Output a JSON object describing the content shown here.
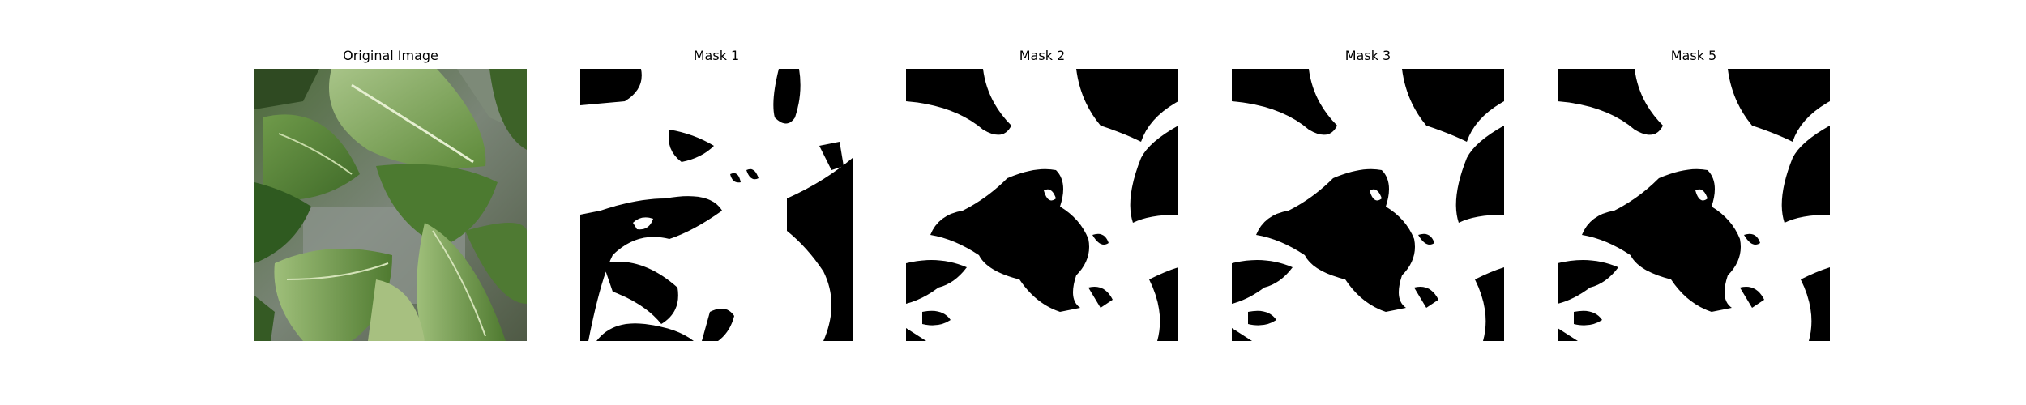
{
  "figure": {
    "panels": [
      {
        "title": "Original Image",
        "kind": "photo",
        "description_icon": "leaves-photo"
      },
      {
        "title": "Mask 1",
        "kind": "mask"
      },
      {
        "title": "Mask 2",
        "kind": "mask"
      },
      {
        "title": "Mask 3",
        "kind": "mask"
      },
      {
        "title": "Mask 5",
        "kind": "mask"
      }
    ]
  }
}
